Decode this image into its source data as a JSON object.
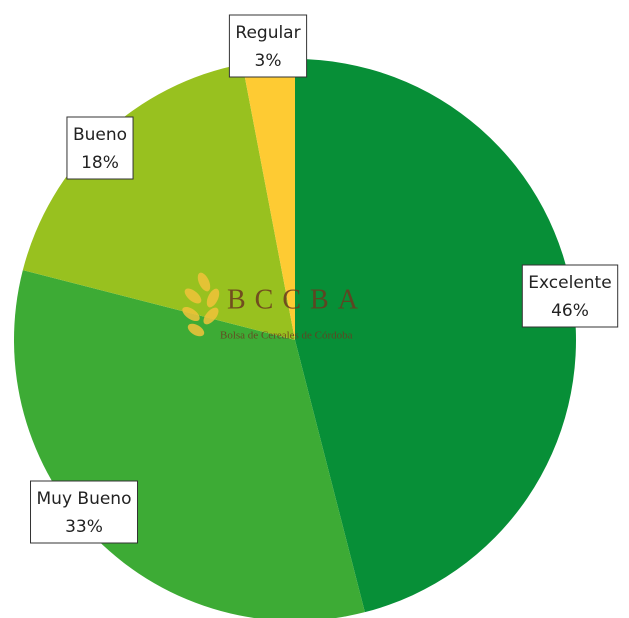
{
  "chart_data": {
    "type": "pie",
    "categories": [
      "Excelente",
      "Muy Bueno",
      "Bueno",
      "Regular"
    ],
    "values": [
      46,
      33,
      18,
      3
    ],
    "value_labels": [
      "46%",
      "33%",
      "18%",
      "3%"
    ],
    "colors": [
      "#078f37",
      "#3dab35",
      "#98c11f",
      "#fecb33"
    ]
  },
  "watermark": {
    "title": "BCCBA",
    "subtitle": "Bolsa de Cereales de Córdoba"
  }
}
